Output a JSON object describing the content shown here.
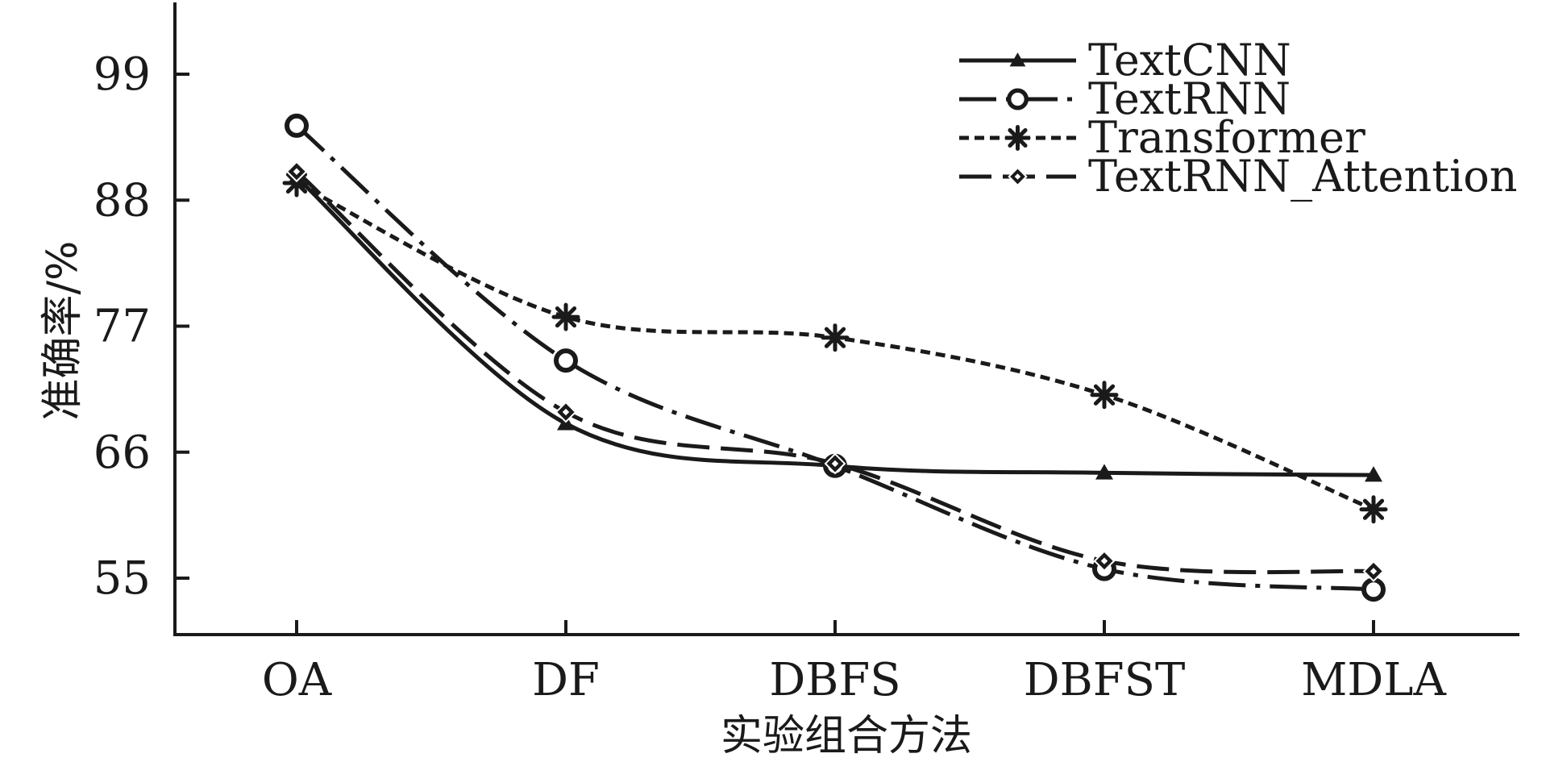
{
  "chart_data": {
    "type": "line",
    "title": "",
    "xlabel": "实验组合方法",
    "ylabel": "准确率/%",
    "categories": [
      "OA",
      "DF",
      "DBFS",
      "DBFST",
      "MDLA"
    ],
    "yticks": [
      55,
      66,
      77,
      88,
      99
    ],
    "ylim": [
      50,
      105
    ],
    "grid": false,
    "legend_position": "top-right",
    "series": [
      {
        "name": "TextCNN",
        "values": [
          90.0,
          68.5,
          64.8,
          64.2,
          64.0
        ],
        "marker": "triangle",
        "dash": "solid"
      },
      {
        "name": "TextRNN",
        "values": [
          94.5,
          74.0,
          64.8,
          55.8,
          54.0
        ],
        "marker": "circle",
        "dash": "long-dash-dot"
      },
      {
        "name": "Transformer",
        "values": [
          89.5,
          77.8,
          76.0,
          71.0,
          61.0
        ],
        "marker": "star",
        "dash": "short-dash"
      },
      {
        "name": "TextRNN_Attention",
        "values": [
          90.5,
          69.5,
          65.0,
          56.5,
          55.6
        ],
        "marker": "diamond",
        "dash": "long-dash"
      }
    ]
  }
}
